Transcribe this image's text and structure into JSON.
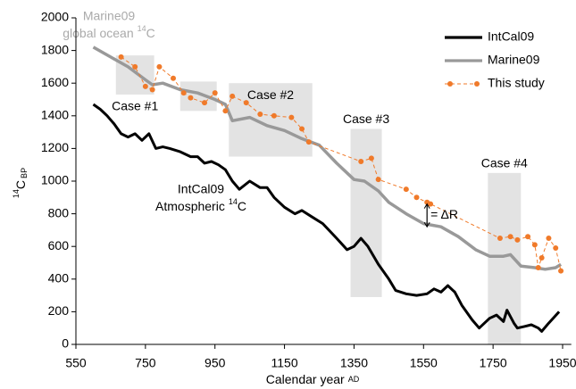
{
  "chart_data": {
    "type": "line",
    "xlabel": {
      "main": "Calendar year",
      "small": "AD"
    },
    "ylabel": {
      "sup": "14",
      "main": "C",
      "sub": "BP"
    },
    "xlim": [
      550,
      1975
    ],
    "ylim": [
      0,
      2000
    ],
    "xticks": [
      550,
      750,
      950,
      1150,
      1350,
      1550,
      1750,
      1950
    ],
    "yticks": [
      0,
      200,
      400,
      600,
      800,
      1000,
      1200,
      1400,
      1600,
      1800,
      2000
    ],
    "legend": "upper right",
    "series": [
      {
        "name": "IntCal09",
        "color": "#000000",
        "style": "solid",
        "x": [
          600,
          620,
          640,
          660,
          680,
          700,
          720,
          740,
          760,
          780,
          800,
          820,
          850,
          880,
          900,
          920,
          940,
          960,
          980,
          1000,
          1020,
          1050,
          1080,
          1100,
          1120,
          1150,
          1180,
          1200,
          1230,
          1260,
          1300,
          1330,
          1350,
          1370,
          1390,
          1420,
          1450,
          1470,
          1500,
          1530,
          1560,
          1580,
          1600,
          1620,
          1640,
          1660,
          1690,
          1710,
          1740,
          1760,
          1780,
          1790,
          1810,
          1820,
          1840,
          1860,
          1880,
          1890,
          1910,
          1940
        ],
        "values": [
          1470,
          1440,
          1400,
          1350,
          1290,
          1270,
          1290,
          1250,
          1290,
          1200,
          1210,
          1200,
          1180,
          1150,
          1150,
          1110,
          1120,
          1100,
          1070,
          1000,
          950,
          1000,
          960,
          960,
          900,
          840,
          800,
          820,
          780,
          740,
          650,
          580,
          600,
          650,
          600,
          490,
          400,
          330,
          310,
          300,
          310,
          340,
          320,
          360,
          320,
          240,
          150,
          100,
          160,
          180,
          140,
          210,
          130,
          100,
          110,
          120,
          100,
          80,
          130,
          200
        ]
      },
      {
        "name": "Marine09",
        "color": "#999999",
        "style": "solid",
        "x": [
          600,
          650,
          700,
          750,
          770,
          800,
          850,
          900,
          950,
          980,
          1000,
          1050,
          1100,
          1150,
          1200,
          1250,
          1300,
          1350,
          1380,
          1420,
          1450,
          1500,
          1550,
          1600,
          1650,
          1700,
          1740,
          1780,
          1800,
          1830,
          1870,
          1900,
          1930,
          1945
        ],
        "values": [
          1820,
          1760,
          1700,
          1620,
          1590,
          1600,
          1560,
          1540,
          1500,
          1470,
          1370,
          1390,
          1340,
          1310,
          1260,
          1220,
          1110,
          1010,
          1000,
          940,
          870,
          800,
          740,
          720,
          660,
          580,
          540,
          540,
          550,
          480,
          470,
          460,
          470,
          490
        ]
      },
      {
        "name": "This study",
        "color": "#f07a2a",
        "style": "dashed",
        "x": [
          680,
          720,
          750,
          770,
          790,
          830,
          860,
          880,
          920,
          950,
          980,
          1000,
          1040,
          1080,
          1120,
          1170,
          1200,
          1220,
          1370,
          1400,
          1420,
          1500,
          1530,
          1560,
          1570,
          1770,
          1800,
          1820,
          1850,
          1870,
          1880,
          1890,
          1910,
          1930,
          1945
        ],
        "values": [
          1760,
          1700,
          1580,
          1560,
          1700,
          1630,
          1540,
          1510,
          1480,
          1540,
          1430,
          1520,
          1480,
          1410,
          1400,
          1390,
          1320,
          1240,
          1120,
          1140,
          1010,
          950,
          900,
          870,
          860,
          650,
          660,
          640,
          660,
          610,
          470,
          530,
          650,
          590,
          450
        ]
      }
    ],
    "shaded_regions": [
      {
        "label": "Case #1",
        "x": [
          665,
          775
        ],
        "y": [
          1530,
          1770
        ]
      },
      {
        "x": [
          850,
          955
        ],
        "y": [
          1430,
          1610
        ]
      },
      {
        "label": "Case #2",
        "x": [
          990,
          1230
        ],
        "y": [
          1150,
          1600
        ]
      },
      {
        "label": "Case #3",
        "x": [
          1340,
          1430
        ],
        "y": [
          290,
          1320
        ]
      },
      {
        "label": "Case #4",
        "x": [
          1735,
          1830
        ],
        "y": [
          0,
          1050
        ]
      }
    ],
    "annotations": {
      "marine": {
        "line1": "Marine09",
        "line2": "global ocean",
        "sup": "14",
        "end": "C"
      },
      "intcal": {
        "line1": "IntCal09",
        "line2": "Atmospheric",
        "sup": "14",
        "end": "C"
      },
      "delta_r": {
        "text": "= ΔR",
        "x": 1560,
        "y": [
          720,
          860
        ]
      }
    }
  }
}
